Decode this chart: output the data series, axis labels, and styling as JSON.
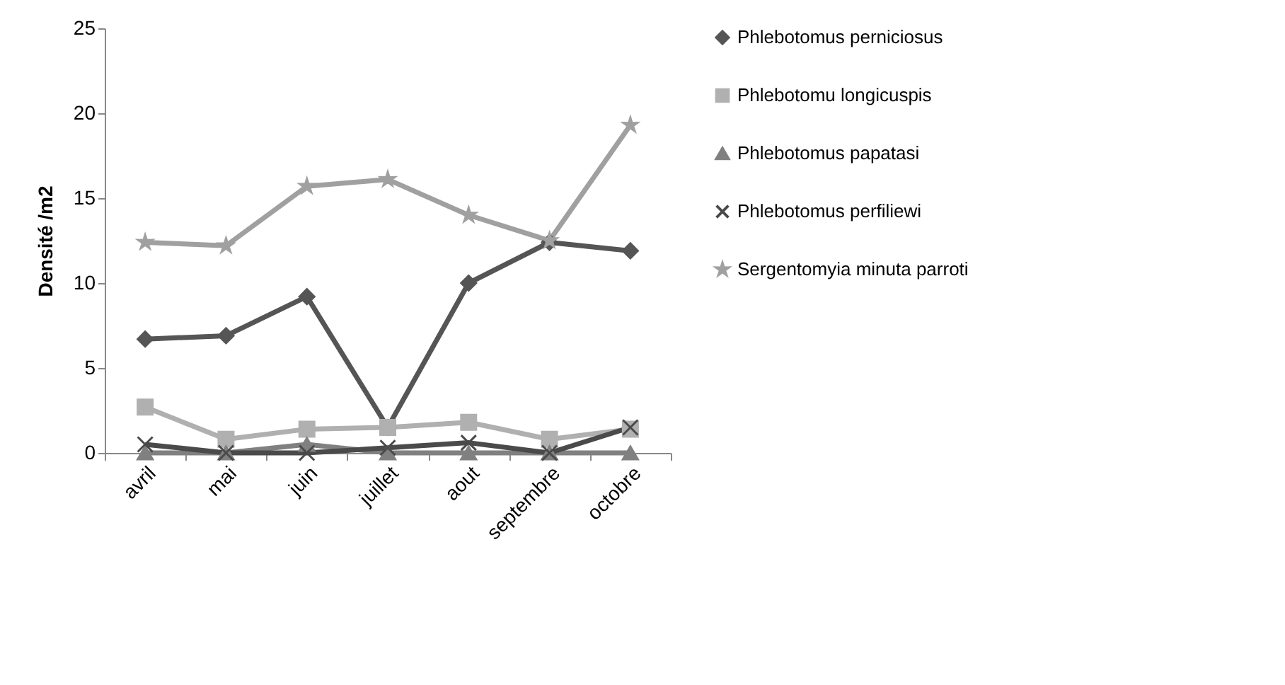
{
  "chart_data": {
    "type": "line",
    "ylabel": "Densité /m2",
    "categories": [
      "avril",
      "mai",
      "juin",
      "juillet",
      "aout",
      "septembre",
      "octobre"
    ],
    "ylim": [
      0,
      25
    ],
    "yticks": [
      0,
      5,
      10,
      15,
      20,
      25
    ],
    "grid": false,
    "legend": "right",
    "series": [
      {
        "name": "Phlebotomus perniciosus",
        "color": "#555555",
        "marker": "diamond",
        "values": [
          6.7,
          6.9,
          9.2,
          1.5,
          10,
          12.4,
          11.9
        ]
      },
      {
        "name": "Phlebotomu longicuspis",
        "color": "#b0b0b0",
        "marker": "square",
        "values": [
          2.7,
          0.8,
          1.4,
          1.5,
          1.8,
          0.8,
          1.4
        ]
      },
      {
        "name": "Phlebotomus papatasi",
        "color": "#808080",
        "marker": "triangle",
        "values": [
          0,
          0,
          0.5,
          0,
          0,
          0,
          0
        ]
      },
      {
        "name": "Phlebotomus perfiliewi",
        "color": "#4a4a4a",
        "marker": "cross",
        "values": [
          0.5,
          0,
          0,
          0.3,
          0.6,
          0,
          1.5
        ]
      },
      {
        "name": "Sergentomyia minuta parroti",
        "color": "#a0a0a0",
        "marker": "star",
        "values": [
          12.4,
          12.2,
          15.7,
          16.1,
          14,
          12.5,
          19.3
        ]
      }
    ]
  }
}
